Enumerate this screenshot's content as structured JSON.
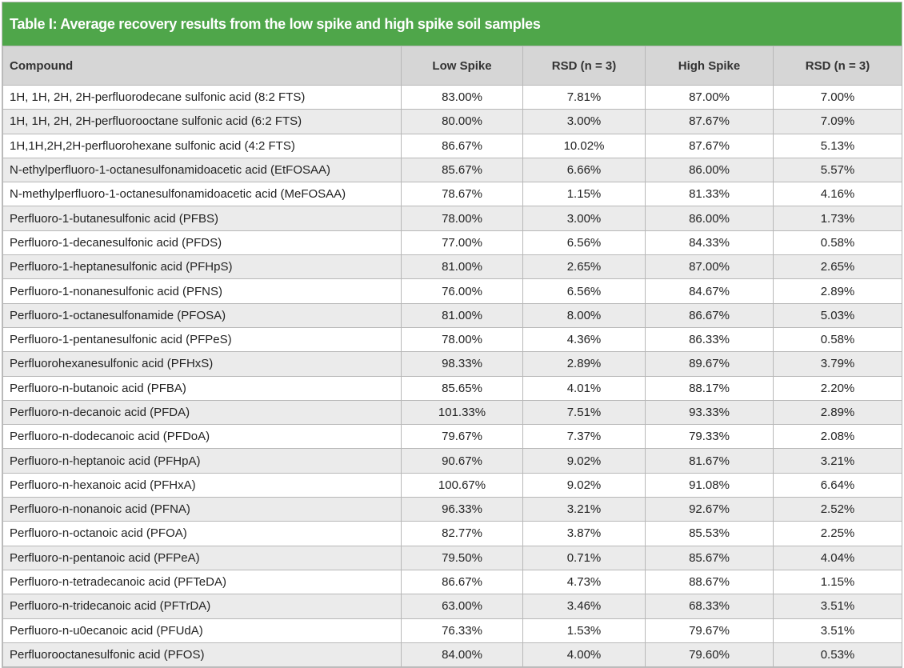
{
  "title": "Table I: Average recovery results from the low spike and high spike soil samples",
  "table": {
    "header": [
      "Compound",
      "Low Spike",
      "RSD (n = 3)",
      "High Spike",
      "RSD (n = 3)"
    ],
    "rows": [
      [
        "1H, 1H, 2H, 2H-perfluorodecane sulfonic acid (8:2 FTS)",
        "83.00%",
        "7.81%",
        "87.00%",
        "7.00%"
      ],
      [
        "1H, 1H, 2H, 2H-perfluorooctane sulfonic acid (6:2 FTS)",
        "80.00%",
        "3.00%",
        "87.67%",
        "7.09%"
      ],
      [
        "1H,1H,2H,2H-perfluorohexane sulfonic acid (4:2 FTS)",
        "86.67%",
        "10.02%",
        "87.67%",
        "5.13%"
      ],
      [
        "N-ethylperfluoro-1-octanesulfonamidoacetic acid (EtFOSAA)",
        "85.67%",
        "6.66%",
        "86.00%",
        "5.57%"
      ],
      [
        "N-methylperfluoro-1-octanesulfonamidoacetic acid (MeFOSAA)",
        "78.67%",
        "1.15%",
        "81.33%",
        "4.16%"
      ],
      [
        "Perfluoro-1-butanesulfonic acid (PFBS)",
        "78.00%",
        "3.00%",
        "86.00%",
        "1.73%"
      ],
      [
        "Perfluoro-1-decanesulfonic acid (PFDS)",
        "77.00%",
        "6.56%",
        "84.33%",
        "0.58%"
      ],
      [
        "Perfluoro-1-heptanesulfonic acid (PFHpS)",
        "81.00%",
        "2.65%",
        "87.00%",
        "2.65%"
      ],
      [
        "Perfluoro-1-nonanesulfonic acid (PFNS)",
        "76.00%",
        "6.56%",
        "84.67%",
        "2.89%"
      ],
      [
        "Perfluoro-1-octanesulfonamide (PFOSA)",
        "81.00%",
        "8.00%",
        "86.67%",
        "5.03%"
      ],
      [
        "Perfluoro-1-pentanesulfonic acid (PFPeS)",
        "78.00%",
        "4.36%",
        "86.33%",
        "0.58%"
      ],
      [
        "Perfluorohexanesulfonic acid (PFHxS)",
        "98.33%",
        "2.89%",
        "89.67%",
        "3.79%"
      ],
      [
        "Perfluoro-n-butanoic acid (PFBA)",
        "85.65%",
        "4.01%",
        "88.17%",
        "2.20%"
      ],
      [
        "Perfluoro-n-decanoic acid (PFDA)",
        "101.33%",
        "7.51%",
        "93.33%",
        "2.89%"
      ],
      [
        "Perfluoro-n-dodecanoic acid (PFDoA)",
        "79.67%",
        "7.37%",
        "79.33%",
        "2.08%"
      ],
      [
        "Perfluoro-n-heptanoic acid (PFHpA)",
        "90.67%",
        "9.02%",
        "81.67%",
        "3.21%"
      ],
      [
        "Perfluoro-n-hexanoic acid (PFHxA)",
        "100.67%",
        "9.02%",
        "91.08%",
        "6.64%"
      ],
      [
        "Perfluoro-n-nonanoic acid (PFNA)",
        "96.33%",
        "3.21%",
        "92.67%",
        "2.52%"
      ],
      [
        "Perfluoro-n-octanoic acid (PFOA)",
        "82.77%",
        "3.87%",
        "85.53%",
        "2.25%"
      ],
      [
        "Perfluoro-n-pentanoic acid (PFPeA)",
        "79.50%",
        "0.71%",
        "85.67%",
        "4.04%"
      ],
      [
        "Perfluoro-n-tetradecanoic acid (PFTeDA)",
        "86.67%",
        "4.73%",
        "88.67%",
        "1.15%"
      ],
      [
        "Perfluoro-n-tridecanoic acid (PFTrDA)",
        "63.00%",
        "3.46%",
        "68.33%",
        "3.51%"
      ],
      [
        "Perfluoro-n-u0ecanoic acid (PFUdA)",
        "76.33%",
        "1.53%",
        "79.67%",
        "3.51%"
      ],
      [
        "Perfluorooctanesulfonic acid (PFOS)",
        "84.00%",
        "4.00%",
        "79.60%",
        "0.53%"
      ]
    ]
  }
}
